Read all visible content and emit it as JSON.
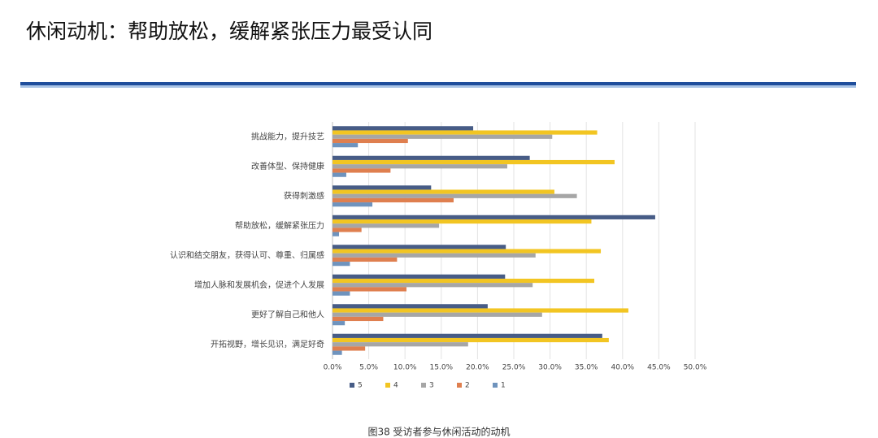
{
  "title": "休闲动机：帮助放松，缓解紧张压力最受认同",
  "caption": "图38 受访者参与休闲活动的动机",
  "chart_data": {
    "type": "bar",
    "orientation": "horizontal",
    "categories": [
      "挑战能力，提升技艺",
      "改善体型、保持健康",
      "获得刺激感",
      "帮助放松，缓解紧张压力",
      "认识和结交朋友，获得认可、尊重、归属感",
      "增加人脉和发展机会，促进个人发展",
      "更好了解自己和他人",
      "开拓视野，增长见识，满足好奇"
    ],
    "series": [
      {
        "name": "5",
        "color": "#475c86",
        "values": [
          19.4,
          27.2,
          13.6,
          44.5,
          23.9,
          23.8,
          21.4,
          37.2
        ]
      },
      {
        "name": "4",
        "color": "#f2c522",
        "values": [
          36.5,
          38.9,
          30.6,
          35.7,
          37.0,
          36.1,
          40.8,
          38.1
        ]
      },
      {
        "name": "3",
        "color": "#a6a6a6",
        "values": [
          30.3,
          24.1,
          33.7,
          14.7,
          28.0,
          27.6,
          28.9,
          18.7
        ]
      },
      {
        "name": "2",
        "color": "#df7f4f",
        "values": [
          10.4,
          8.0,
          16.7,
          4.0,
          8.9,
          10.2,
          7.0,
          4.5
        ]
      },
      {
        "name": "1",
        "color": "#6f93bd",
        "values": [
          3.5,
          1.9,
          5.5,
          0.9,
          2.4,
          2.4,
          1.7,
          1.3
        ]
      }
    ],
    "xlim": [
      0,
      50
    ],
    "xticks": [
      {
        "value": 0,
        "label": "0.0%"
      },
      {
        "value": 5,
        "label": "5.0%"
      },
      {
        "value": 10,
        "label": "10.0%"
      },
      {
        "value": 15,
        "label": "15.0%"
      },
      {
        "value": 20,
        "label": "20.0%"
      },
      {
        "value": 25,
        "label": "25.0%"
      },
      {
        "value": 30,
        "label": "30.0%"
      },
      {
        "value": 35,
        "label": "35.0%"
      },
      {
        "value": 40,
        "label": "40.0%"
      },
      {
        "value": 45,
        "label": "45.0%"
      },
      {
        "value": 50,
        "label": "50.0%"
      }
    ],
    "grid": true,
    "legend": "bottom"
  }
}
